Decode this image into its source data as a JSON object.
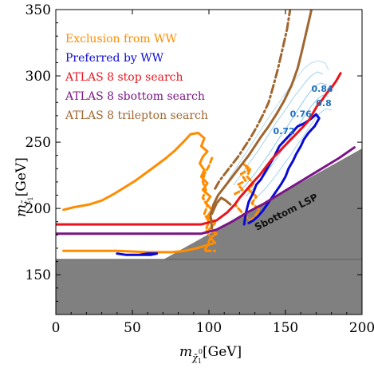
{
  "chart_data": {
    "type": "line",
    "xlabel_main": "m",
    "xlabel_sub": "χ̃",
    "xlabel_sub1": "1",
    "xlabel_sup": "0",
    "xlabel_unit": "[GeV]",
    "ylabel_main": "m",
    "ylabel_sub": "t̃",
    "ylabel_sub1": "1",
    "ylabel_unit": "[GeV]",
    "xlim": [
      0,
      200
    ],
    "ylim": [
      120,
      350
    ],
    "x_ticks": [
      "0",
      "50",
      "100",
      "150",
      "200"
    ],
    "y_ticks": [
      "150",
      "200",
      "250",
      "300",
      "350"
    ],
    "x_tick_values": [
      0,
      50,
      100,
      150,
      200
    ],
    "y_tick_values": [
      150,
      200,
      250,
      300,
      350
    ],
    "legend": {
      "placement": "top-left",
      "entries": [
        {
          "label": "Exclusion from WW",
          "color": "#ff8c00"
        },
        {
          "label": "Preferred by WW",
          "color": "#0a0ad6"
        },
        {
          "label": "ATLAS 8 stop search",
          "color": "#e8141e"
        },
        {
          "label": "ATLAS 8 sbottom search",
          "color": "#7a1585"
        },
        {
          "label": "ATLAS 8 trilepton search",
          "color": "#a0662f"
        }
      ]
    },
    "annotations": {
      "region_label": "Sbottom LSP",
      "contour_labels": [
        {
          "text": "0.84",
          "x": 174,
          "y": 288
        },
        {
          "text": "0.8",
          "x": 175,
          "y": 277
        },
        {
          "text": "0.76",
          "x": 160,
          "y": 269
        },
        {
          "text": "0.72",
          "x": 149,
          "y": 256
        }
      ]
    },
    "colors": {
      "gray_region": "#808080",
      "contour": "#8cc8f0"
    },
    "series": [
      {
        "name": "Exclusion from WW",
        "color": "#ff8c00",
        "style": "solid",
        "points": [
          [
            5,
            199
          ],
          [
            12,
            201
          ],
          [
            22,
            203
          ],
          [
            30,
            206
          ],
          [
            38,
            211
          ],
          [
            45,
            216
          ],
          [
            52,
            221
          ],
          [
            58,
            226
          ],
          [
            65,
            232
          ],
          [
            72,
            238
          ],
          [
            78,
            244
          ],
          [
            84,
            251
          ],
          [
            88,
            256
          ],
          [
            93,
            257
          ],
          [
            97,
            253
          ],
          [
            95,
            247
          ],
          [
            99,
            243
          ],
          [
            96,
            239
          ],
          [
            94,
            234
          ],
          [
            97,
            229
          ],
          [
            95,
            224
          ],
          [
            99,
            219
          ],
          [
            96,
            214
          ],
          [
            101,
            209
          ],
          [
            98,
            204
          ],
          [
            102,
            199
          ],
          [
            99,
            194
          ],
          [
            104,
            189
          ],
          [
            100,
            184
          ],
          [
            105,
            181
          ],
          [
            101,
            178
          ],
          [
            104,
            174
          ],
          [
            98,
            172
          ],
          [
            92,
            170
          ],
          [
            84,
            168
          ],
          [
            76,
            167
          ],
          [
            60,
            167
          ],
          [
            40,
            168
          ],
          [
            20,
            168
          ],
          [
            5,
            168
          ]
        ]
      },
      {
        "name": "Exclusion from WW",
        "color": "#ff8c00",
        "style": "dashed",
        "points": [
          [
            102,
            238
          ],
          [
            100,
            232
          ],
          [
            97,
            226
          ],
          [
            96,
            220
          ],
          [
            98,
            214
          ],
          [
            96,
            208
          ],
          [
            99,
            202
          ],
          [
            97,
            196
          ],
          [
            100,
            190
          ],
          [
            98,
            184
          ],
          [
            101,
            178
          ],
          [
            99,
            172
          ],
          [
            97,
            168
          ],
          [
            104,
            168
          ]
        ]
      },
      {
        "name": "Exclusion from WW",
        "color": "#ff8c00",
        "style": "dashed",
        "points": [
          [
            117,
            211
          ],
          [
            122,
            214
          ],
          [
            119,
            218
          ],
          [
            124,
            221
          ],
          [
            121,
            226
          ],
          [
            126,
            229
          ],
          [
            123,
            233
          ],
          [
            127,
            230
          ],
          [
            125,
            224
          ],
          [
            129,
            219
          ],
          [
            126,
            214
          ],
          [
            131,
            209
          ],
          [
            128,
            204
          ],
          [
            133,
            199
          ],
          [
            130,
            194
          ],
          [
            127,
            191
          ],
          [
            123,
            195
          ],
          [
            120,
            199
          ],
          [
            117,
            203
          ]
        ]
      },
      {
        "name": "Preferred by WW",
        "color": "#0a0ad6",
        "style": "solid",
        "points": [
          [
            123,
            188
          ],
          [
            124,
            196
          ],
          [
            126,
            205
          ],
          [
            129,
            212
          ],
          [
            131,
            218
          ],
          [
            134,
            222
          ],
          [
            137,
            228
          ],
          [
            140,
            234
          ],
          [
            143,
            240
          ],
          [
            146,
            247
          ],
          [
            150,
            252
          ],
          [
            154,
            257
          ],
          [
            158,
            262
          ],
          [
            162,
            264
          ],
          [
            166,
            267
          ],
          [
            170,
            271
          ],
          [
            172,
            268
          ],
          [
            169,
            262
          ],
          [
            165,
            257
          ],
          [
            162,
            252
          ],
          [
            160,
            247
          ],
          [
            157,
            241
          ],
          [
            155,
            236
          ],
          [
            152,
            230
          ],
          [
            150,
            224
          ],
          [
            147,
            218
          ],
          [
            144,
            213
          ],
          [
            141,
            208
          ],
          [
            138,
            203
          ],
          [
            135,
            198
          ],
          [
            132,
            194
          ],
          [
            129,
            191
          ],
          [
            126,
            189
          ]
        ]
      },
      {
        "name": "Preferred by WW",
        "color": "#0a0ad6",
        "style": "solid",
        "points": [
          [
            40,
            166
          ],
          [
            46,
            165
          ],
          [
            54,
            165
          ],
          [
            60,
            166
          ],
          [
            66,
            166
          ],
          [
            62,
            165
          ],
          [
            55,
            165
          ],
          [
            48,
            165
          ]
        ]
      },
      {
        "name": "ATLAS 8 stop search",
        "color": "#e8141e",
        "style": "solid",
        "points": [
          [
            0,
            188
          ],
          [
            95,
            188
          ],
          [
            105,
            191
          ],
          [
            112,
            197
          ],
          [
            117,
            203
          ],
          [
            120,
            208
          ],
          [
            123,
            212
          ],
          [
            126,
            216
          ],
          [
            129,
            220
          ],
          [
            133,
            225
          ],
          [
            137,
            231
          ],
          [
            141,
            237
          ],
          [
            146,
            243
          ],
          [
            151,
            249
          ],
          [
            156,
            255
          ],
          [
            161,
            261
          ],
          [
            165,
            266
          ],
          [
            168,
            272
          ],
          [
            171,
            278
          ],
          [
            174,
            282
          ],
          [
            177,
            287
          ],
          [
            180,
            291
          ],
          [
            183,
            296
          ],
          [
            186,
            302
          ]
        ]
      },
      {
        "name": "ATLAS 8 sbottom search",
        "color": "#7a1585",
        "style": "solid",
        "points": [
          [
            0,
            181
          ],
          [
            95,
            181
          ],
          [
            105,
            184
          ],
          [
            115,
            190
          ],
          [
            125,
            197
          ],
          [
            135,
            203
          ],
          [
            145,
            210
          ],
          [
            155,
            217
          ],
          [
            165,
            224
          ],
          [
            175,
            231
          ],
          [
            185,
            238
          ],
          [
            195,
            246
          ]
        ]
      },
      {
        "name": "ATLAS 8 trilepton search",
        "color": "#a0662f",
        "style": "solid",
        "points": [
          [
            102,
            185
          ],
          [
            101,
            195
          ],
          [
            103,
            203
          ],
          [
            106,
            210
          ],
          [
            110,
            216
          ],
          [
            114,
            222
          ],
          [
            118,
            228
          ],
          [
            122,
            234
          ],
          [
            126,
            240
          ],
          [
            130,
            247
          ],
          [
            134,
            254
          ],
          [
            139,
            262
          ],
          [
            144,
            271
          ],
          [
            149,
            281
          ],
          [
            154,
            293
          ],
          [
            158,
            306
          ],
          [
            161,
            320
          ],
          [
            164,
            335
          ],
          [
            167,
            350
          ]
        ]
      },
      {
        "name": "ATLAS 8 trilepton search",
        "color": "#a0662f",
        "style": "dashdot",
        "points": [
          [
            104,
            215
          ],
          [
            107,
            221
          ],
          [
            111,
            227
          ],
          [
            115,
            233
          ],
          [
            119,
            239
          ],
          [
            123,
            246
          ],
          [
            127,
            253
          ],
          [
            131,
            261
          ],
          [
            135,
            270
          ],
          [
            139,
            280
          ],
          [
            142,
            292
          ],
          [
            145,
            305
          ],
          [
            148,
            320
          ],
          [
            151,
            335
          ],
          [
            153,
            350
          ]
        ]
      },
      {
        "name": "ATLAS 8 trilepton search",
        "color": "#a0662f",
        "style": "solid",
        "points": [
          [
            102,
            196
          ],
          [
            105,
            204
          ],
          [
            108,
            208
          ],
          [
            111,
            206
          ],
          [
            114,
            203
          ]
        ]
      }
    ]
  }
}
